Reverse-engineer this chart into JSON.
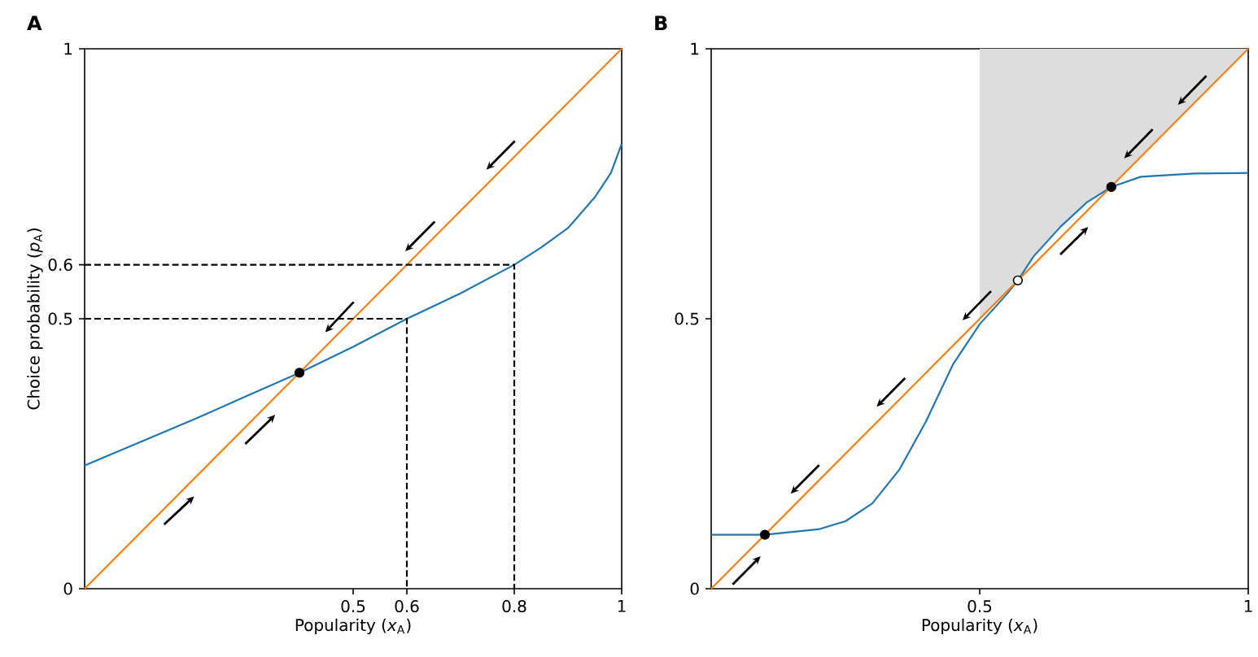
{
  "chart_data": [
    {
      "type": "line",
      "title": "A",
      "xlabel": "Popularity (*x*$_{A}$)",
      "ylabel": "Choice probability (*p*$_{A}$)",
      "xlim": [
        0,
        1
      ],
      "ylim": [
        0,
        1
      ],
      "xticks": [
        0.5,
        0.6,
        0.8,
        1
      ],
      "yticks": [
        0,
        0.5,
        0.6,
        1
      ],
      "series": [
        {
          "color": "#1f77b4",
          "x": [
            0,
            0.1,
            0.2,
            0.3,
            0.4,
            0.5,
            0.6,
            0.7,
            0.8,
            0.85,
            0.9,
            0.95,
            0.98,
            1
          ],
          "values": [
            0.228,
            0.27,
            0.312,
            0.356,
            0.4,
            0.448,
            0.5,
            0.547,
            0.6,
            0.632,
            0.668,
            0.725,
            0.77,
            0.824
          ]
        },
        {
          "color": "#ff7f0e",
          "x": [
            0,
            1
          ],
          "values": [
            0,
            1
          ]
        },
        {
          "color": "#000000",
          "line_style": "dashed",
          "x": [
            0,
            0.6,
            0.6
          ],
          "values": [
            0.5,
            0.5,
            0
          ]
        },
        {
          "color": "#000000",
          "line_style": "dashed",
          "x": [
            0,
            0.8,
            0.8
          ],
          "values": [
            0.6,
            0.6,
            0
          ]
        },
        {
          "type": "scatter",
          "color": "#000000",
          "marker": "circle",
          "x": [
            0.4
          ],
          "values": [
            0.4
          ]
        }
      ]
    },
    {
      "type": "line",
      "title": "B",
      "xlabel": "Popularity (*x*$_{A}$)",
      "xlim": [
        0,
        1
      ],
      "ylim": [
        0,
        1
      ],
      "xticks": [
        0.5,
        1
      ],
      "yticks": [
        0,
        0.5,
        1
      ],
      "bands": [
        {
          "axis": "x",
          "from": 0.5,
          "to": 1,
          "color": "#dddddd"
        }
      ],
      "series": [
        {
          "color": "#1f77b4",
          "x": [
            0,
            0.1,
            0.2,
            0.25,
            0.3,
            0.35,
            0.4,
            0.45,
            0.5,
            0.55,
            0.571,
            0.6,
            0.65,
            0.7,
            0.745,
            0.8,
            0.9,
            1
          ],
          "values": [
            0.1,
            0.1,
            0.11,
            0.125,
            0.158,
            0.22,
            0.31,
            0.415,
            0.49,
            0.545,
            0.571,
            0.615,
            0.67,
            0.716,
            0.744,
            0.763,
            0.769,
            0.77
          ]
        },
        {
          "color": "#ff7f0e",
          "x": [
            0,
            1
          ],
          "values": [
            0,
            1
          ]
        },
        {
          "type": "scatter",
          "color": "#000000",
          "marker": "circle",
          "x": [
            0.1,
            0.745
          ],
          "values": [
            0.1,
            0.744
          ]
        },
        {
          "type": "scatter",
          "color": "#ffffff",
          "marker": "circle",
          "x": [
            0.571
          ],
          "values": [
            0.571
          ]
        }
      ]
    }
  ]
}
